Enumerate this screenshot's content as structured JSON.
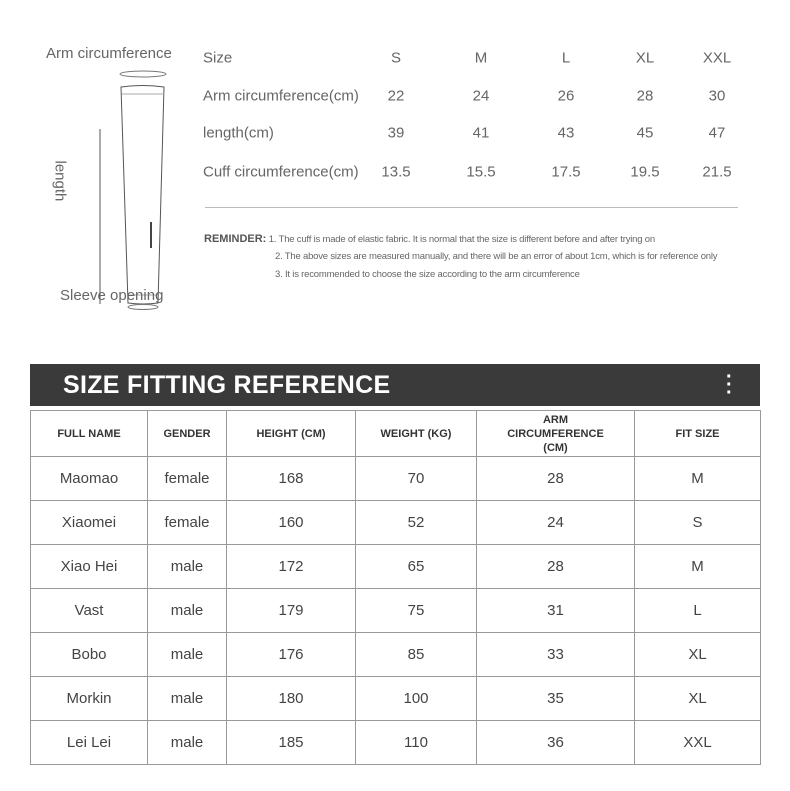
{
  "diagram": {
    "top_label": "Arm circumference",
    "side_label": "length",
    "bottom_label": "Sleeve opening"
  },
  "size_table": {
    "header": [
      "Size",
      "S",
      "M",
      "L",
      "XL",
      "XXL"
    ],
    "rows": [
      [
        "Arm circumference(cm)",
        "22",
        "24",
        "26",
        "28",
        "30"
      ],
      [
        "length(cm)",
        "39",
        "41",
        "43",
        "45",
        "47"
      ],
      [
        "Cuff circumference(cm)",
        "13.5",
        "15.5",
        "17.5",
        "19.5",
        "21.5"
      ]
    ]
  },
  "reminder": {
    "label": "REMINDER:",
    "items": [
      "1. The cuff is made of elastic fabric. It is normal that the size is different before and after trying on",
      "2. The above sizes are measured manually, and there will be an error of about 1cm, which is for reference only",
      "3. It is recommended to choose the size according to the arm circumference"
    ]
  },
  "fitting": {
    "title": "SIZE FITTING REFERENCE",
    "menu_icon": "more-vertical-icon",
    "columns": [
      "FULL NAME",
      "GENDER",
      "HEIGHT (CM)",
      "WEIGHT (KG)",
      "ARM CIRCUMFERENCE (CM)",
      "FIT SIZE"
    ],
    "rows": [
      [
        "Maomao",
        "female",
        "168",
        "70",
        "28",
        "M"
      ],
      [
        "Xiaomei",
        "female",
        "160",
        "52",
        "24",
        "S"
      ],
      [
        "Xiao Hei",
        "male",
        "172",
        "65",
        "28",
        "M"
      ],
      [
        "Vast",
        "male",
        "179",
        "75",
        "31",
        "L"
      ],
      [
        "Bobo",
        "male",
        "176",
        "85",
        "33",
        "XL"
      ],
      [
        "Morkin",
        "male",
        "180",
        "100",
        "35",
        "XL"
      ],
      [
        "Lei Lei",
        "male",
        "185",
        "110",
        "36",
        "XXL"
      ]
    ]
  },
  "colors": {
    "banner": "#3a3a3a",
    "text": "#666666",
    "border": "#999999"
  }
}
